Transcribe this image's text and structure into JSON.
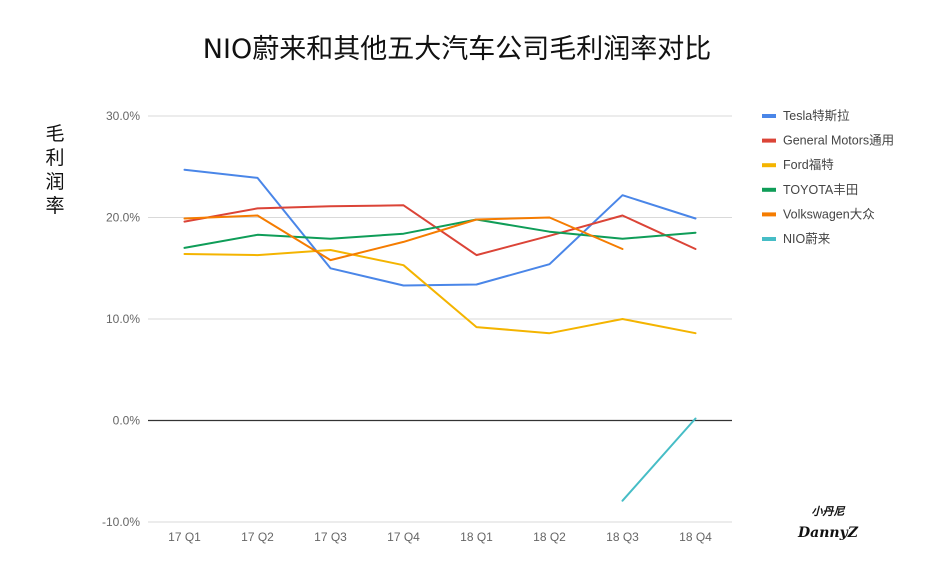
{
  "chart_data": {
    "type": "line",
    "title": "NIO蔚来和其他五大汽车公司毛利润率对比",
    "xlabel": "",
    "ylabel": "毛利润率",
    "categories": [
      "17 Q1",
      "17 Q2",
      "17 Q3",
      "17 Q4",
      "18 Q1",
      "18 Q2",
      "18 Q3",
      "18 Q4"
    ],
    "ylim": [
      -10,
      30
    ],
    "yticks": [
      -10,
      0,
      10,
      20,
      30
    ],
    "ytick_labels": [
      "-10.0%",
      "0.0%",
      "10.0%",
      "20.0%",
      "30.0%"
    ],
    "grid": true,
    "legend_position": "right",
    "series": [
      {
        "name": "Tesla特斯拉",
        "color": "#4a86e8",
        "values": [
          24.7,
          23.9,
          15.0,
          13.3,
          13.4,
          15.4,
          22.2,
          19.9
        ]
      },
      {
        "name": "General Motors通用",
        "color": "#db4437",
        "values": [
          19.6,
          20.9,
          21.1,
          21.2,
          16.3,
          18.2,
          20.2,
          16.9
        ]
      },
      {
        "name": "Ford福特",
        "color": "#f4b400",
        "values": [
          16.4,
          16.3,
          16.8,
          15.3,
          9.2,
          8.6,
          10.0,
          8.6
        ]
      },
      {
        "name": "TOYOTA丰田",
        "color": "#0f9d58",
        "values": [
          17.0,
          18.3,
          17.9,
          18.4,
          19.8,
          18.6,
          17.9,
          18.5
        ]
      },
      {
        "name": "Volkswagen大众",
        "color": "#f57c00",
        "values": [
          19.9,
          20.2,
          15.8,
          17.6,
          19.8,
          20.0,
          16.9,
          null
        ]
      },
      {
        "name": "NIO蔚来",
        "color": "#46bdc6",
        "values": [
          null,
          null,
          null,
          null,
          null,
          null,
          -7.9,
          0.2
        ]
      }
    ]
  },
  "watermark": {
    "line1": "小丹尼",
    "line2": "DannyZ"
  }
}
